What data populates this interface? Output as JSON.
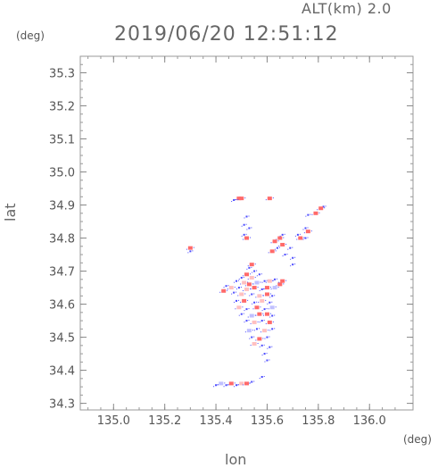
{
  "header": {
    "alt_label": "ALT(km) 2.0",
    "datetime": "2019/06/20 12:51:12",
    "y_unit": "(deg)",
    "x_unit": "(deg)"
  },
  "chart_data": {
    "type": "heatmap",
    "title": "2019/06/20 12:51:12",
    "subtitle": "ALT(km) 2.0",
    "xlabel": "lon",
    "ylabel": "lat",
    "xlim": [
      134.87,
      136.17
    ],
    "ylim": [
      34.28,
      35.35
    ],
    "xticks": [
      "135.0",
      "135.2",
      "135.4",
      "135.6",
      "135.8",
      "136.0"
    ],
    "xtick_values": [
      135.0,
      135.2,
      135.4,
      135.6,
      135.8,
      136.0
    ],
    "yticks": [
      "34.3",
      "34.4",
      "34.5",
      "34.6",
      "34.7",
      "34.8",
      "34.9",
      "35.0",
      "35.1",
      "35.2",
      "35.3"
    ],
    "ytick_values": [
      34.3,
      34.4,
      34.5,
      34.6,
      34.7,
      34.8,
      34.9,
      35.0,
      35.1,
      35.2,
      35.3
    ],
    "grid": false,
    "colors": {
      "positive": "#ff6a6a",
      "negative": "#4a4aff",
      "light_positive": "#ffc0c0",
      "light_negative": "#c0c0ff"
    },
    "points": [
      {
        "lon": 135.49,
        "lat": 34.92,
        "c": "p"
      },
      {
        "lon": 135.5,
        "lat": 34.92,
        "c": "p"
      },
      {
        "lon": 135.61,
        "lat": 34.92,
        "c": "p"
      },
      {
        "lon": 135.47,
        "lat": 34.915,
        "c": "n"
      },
      {
        "lon": 135.82,
        "lat": 34.895,
        "c": "n"
      },
      {
        "lon": 135.81,
        "lat": 34.89,
        "c": "p"
      },
      {
        "lon": 135.76,
        "lat": 34.87,
        "c": "n"
      },
      {
        "lon": 135.79,
        "lat": 34.875,
        "c": "p"
      },
      {
        "lon": 135.52,
        "lat": 34.865,
        "c": "n"
      },
      {
        "lon": 135.51,
        "lat": 34.84,
        "c": "n"
      },
      {
        "lon": 135.53,
        "lat": 34.83,
        "c": "n"
      },
      {
        "lon": 135.51,
        "lat": 34.81,
        "c": "n"
      },
      {
        "lon": 135.52,
        "lat": 34.8,
        "c": "p"
      },
      {
        "lon": 135.75,
        "lat": 34.83,
        "c": "n"
      },
      {
        "lon": 135.76,
        "lat": 34.82,
        "c": "p"
      },
      {
        "lon": 135.75,
        "lat": 34.8,
        "c": "n"
      },
      {
        "lon": 135.72,
        "lat": 34.81,
        "c": "n"
      },
      {
        "lon": 135.73,
        "lat": 34.8,
        "c": "p"
      },
      {
        "lon": 135.65,
        "lat": 34.8,
        "c": "p"
      },
      {
        "lon": 135.66,
        "lat": 34.81,
        "c": "n"
      },
      {
        "lon": 135.63,
        "lat": 34.79,
        "c": "p"
      },
      {
        "lon": 135.64,
        "lat": 34.77,
        "c": "n"
      },
      {
        "lon": 135.62,
        "lat": 34.76,
        "c": "p"
      },
      {
        "lon": 135.66,
        "lat": 34.78,
        "c": "p"
      },
      {
        "lon": 135.67,
        "lat": 34.75,
        "c": "n"
      },
      {
        "lon": 135.69,
        "lat": 34.77,
        "c": "n"
      },
      {
        "lon": 135.7,
        "lat": 34.74,
        "c": "n"
      },
      {
        "lon": 135.7,
        "lat": 34.72,
        "c": "n"
      },
      {
        "lon": 135.3,
        "lat": 34.77,
        "c": "p"
      },
      {
        "lon": 135.3,
        "lat": 34.76,
        "c": "n"
      },
      {
        "lon": 135.54,
        "lat": 34.72,
        "c": "p"
      },
      {
        "lon": 135.53,
        "lat": 34.71,
        "c": "n"
      },
      {
        "lon": 135.55,
        "lat": 34.7,
        "c": "n"
      },
      {
        "lon": 135.52,
        "lat": 34.69,
        "c": "p"
      },
      {
        "lon": 135.5,
        "lat": 34.68,
        "c": "n"
      },
      {
        "lon": 135.54,
        "lat": 34.68,
        "c": "lp"
      },
      {
        "lon": 135.57,
        "lat": 34.69,
        "c": "n"
      },
      {
        "lon": 135.48,
        "lat": 34.67,
        "c": "n"
      },
      {
        "lon": 135.51,
        "lat": 34.665,
        "c": "lp"
      },
      {
        "lon": 135.53,
        "lat": 34.66,
        "c": "p"
      },
      {
        "lon": 135.56,
        "lat": 34.665,
        "c": "ln"
      },
      {
        "lon": 135.59,
        "lat": 34.67,
        "c": "n"
      },
      {
        "lon": 135.61,
        "lat": 34.67,
        "c": "lp"
      },
      {
        "lon": 135.63,
        "lat": 34.675,
        "c": "n"
      },
      {
        "lon": 135.65,
        "lat": 34.66,
        "c": "p"
      },
      {
        "lon": 135.66,
        "lat": 34.67,
        "c": "p"
      },
      {
        "lon": 135.44,
        "lat": 34.655,
        "c": "n"
      },
      {
        "lon": 135.46,
        "lat": 34.65,
        "c": "lp"
      },
      {
        "lon": 135.49,
        "lat": 34.65,
        "c": "n"
      },
      {
        "lon": 135.52,
        "lat": 34.645,
        "c": "lp"
      },
      {
        "lon": 135.55,
        "lat": 34.65,
        "c": "p"
      },
      {
        "lon": 135.58,
        "lat": 34.645,
        "c": "n"
      },
      {
        "lon": 135.6,
        "lat": 34.65,
        "c": "p"
      },
      {
        "lon": 135.63,
        "lat": 34.65,
        "c": "ln"
      },
      {
        "lon": 135.43,
        "lat": 34.64,
        "c": "p"
      },
      {
        "lon": 135.47,
        "lat": 34.635,
        "c": "n"
      },
      {
        "lon": 135.5,
        "lat": 34.63,
        "c": "lp"
      },
      {
        "lon": 135.54,
        "lat": 34.63,
        "c": "n"
      },
      {
        "lon": 135.57,
        "lat": 34.625,
        "c": "lp"
      },
      {
        "lon": 135.6,
        "lat": 34.63,
        "c": "p"
      },
      {
        "lon": 135.62,
        "lat": 34.625,
        "c": "n"
      },
      {
        "lon": 135.48,
        "lat": 34.61,
        "c": "n"
      },
      {
        "lon": 135.51,
        "lat": 34.61,
        "c": "p"
      },
      {
        "lon": 135.55,
        "lat": 34.605,
        "c": "n"
      },
      {
        "lon": 135.58,
        "lat": 34.61,
        "c": "lp"
      },
      {
        "lon": 135.61,
        "lat": 34.605,
        "c": "n"
      },
      {
        "lon": 135.49,
        "lat": 34.59,
        "c": "lp"
      },
      {
        "lon": 135.52,
        "lat": 34.585,
        "c": "n"
      },
      {
        "lon": 135.56,
        "lat": 34.59,
        "c": "p"
      },
      {
        "lon": 135.59,
        "lat": 34.585,
        "c": "n"
      },
      {
        "lon": 135.62,
        "lat": 34.59,
        "c": "ln"
      },
      {
        "lon": 135.5,
        "lat": 34.57,
        "c": "n"
      },
      {
        "lon": 135.54,
        "lat": 34.565,
        "c": "ln"
      },
      {
        "lon": 135.57,
        "lat": 34.57,
        "c": "p"
      },
      {
        "lon": 135.6,
        "lat": 34.57,
        "c": "p"
      },
      {
        "lon": 135.62,
        "lat": 34.565,
        "c": "n"
      },
      {
        "lon": 135.52,
        "lat": 34.55,
        "c": "n"
      },
      {
        "lon": 135.55,
        "lat": 34.545,
        "c": "lp"
      },
      {
        "lon": 135.58,
        "lat": 34.55,
        "c": "n"
      },
      {
        "lon": 135.61,
        "lat": 34.545,
        "c": "p"
      },
      {
        "lon": 135.53,
        "lat": 34.52,
        "c": "ln"
      },
      {
        "lon": 135.56,
        "lat": 34.525,
        "c": "n"
      },
      {
        "lon": 135.59,
        "lat": 34.52,
        "c": "lp"
      },
      {
        "lon": 135.62,
        "lat": 34.525,
        "c": "n"
      },
      {
        "lon": 135.54,
        "lat": 34.5,
        "c": "n"
      },
      {
        "lon": 135.57,
        "lat": 34.495,
        "c": "p"
      },
      {
        "lon": 135.6,
        "lat": 34.5,
        "c": "n"
      },
      {
        "lon": 135.55,
        "lat": 34.48,
        "c": "lp"
      },
      {
        "lon": 135.58,
        "lat": 34.475,
        "c": "n"
      },
      {
        "lon": 135.61,
        "lat": 34.47,
        "c": "n"
      },
      {
        "lon": 135.59,
        "lat": 34.45,
        "c": "n"
      },
      {
        "lon": 135.6,
        "lat": 34.43,
        "c": "n"
      },
      {
        "lon": 135.58,
        "lat": 34.38,
        "c": "n"
      },
      {
        "lon": 135.4,
        "lat": 34.355,
        "c": "n"
      },
      {
        "lon": 135.42,
        "lat": 34.36,
        "c": "ln"
      },
      {
        "lon": 135.44,
        "lat": 34.355,
        "c": "n"
      },
      {
        "lon": 135.46,
        "lat": 34.36,
        "c": "p"
      },
      {
        "lon": 135.48,
        "lat": 34.355,
        "c": "n"
      },
      {
        "lon": 135.5,
        "lat": 34.36,
        "c": "lp"
      },
      {
        "lon": 135.52,
        "lat": 34.36,
        "c": "p"
      },
      {
        "lon": 135.54,
        "lat": 34.365,
        "c": "n"
      }
    ]
  }
}
